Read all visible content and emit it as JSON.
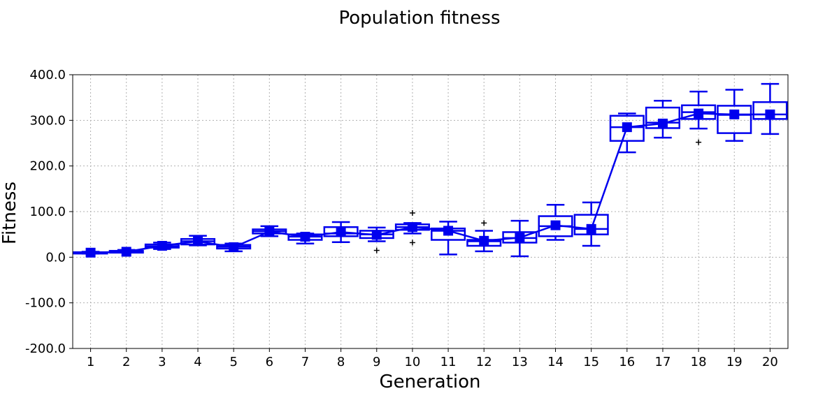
{
  "chart_data": {
    "type": "box",
    "title": "Population fitness",
    "xlabel": "Generation",
    "ylabel": "Fitness",
    "ylim": [
      -200,
      400
    ],
    "y_ticks": [
      -200,
      -100,
      0,
      100,
      200,
      300,
      400
    ],
    "y_tick_labels": [
      "-200.0",
      "-100.0",
      "0.0",
      "100.0",
      "200.0",
      "300.0",
      "400.0"
    ],
    "grid": true,
    "colors": {
      "series": "#0000ee",
      "outlier": "#000000",
      "grid": "#b0b0b0"
    },
    "categories": [
      "1",
      "2",
      "3",
      "4",
      "5",
      "6",
      "7",
      "8",
      "9",
      "10",
      "11",
      "12",
      "13",
      "14",
      "15",
      "16",
      "17",
      "18",
      "19",
      "20"
    ],
    "series": [
      {
        "name": "mean",
        "values": [
          10,
          12,
          25,
          35,
          22,
          56,
          45,
          55,
          49,
          66,
          58,
          36,
          43,
          70,
          62,
          285,
          293,
          315,
          313,
          313
        ]
      }
    ],
    "boxes": [
      {
        "whisker_low": 8,
        "q1": 8,
        "median": 10,
        "q3": 11,
        "whisker_high": 12,
        "outliers": []
      },
      {
        "whisker_low": 10,
        "q1": 10,
        "median": 12,
        "q3": 14,
        "whisker_high": 16,
        "outliers": []
      },
      {
        "whisker_low": 18,
        "q1": 21,
        "median": 24,
        "q3": 28,
        "whisker_high": 32,
        "outliers": []
      },
      {
        "whisker_low": 26,
        "q1": 28,
        "median": 35,
        "q3": 40,
        "whisker_high": 47,
        "outliers": []
      },
      {
        "whisker_low": 13,
        "q1": 19,
        "median": 23,
        "q3": 27,
        "whisker_high": 30,
        "outliers": []
      },
      {
        "whisker_low": 46,
        "q1": 52,
        "median": 57,
        "q3": 61,
        "whisker_high": 68,
        "outliers": []
      },
      {
        "whisker_low": 30,
        "q1": 38,
        "median": 45,
        "q3": 50,
        "whisker_high": 52,
        "outliers": []
      },
      {
        "whisker_low": 33,
        "q1": 46,
        "median": 52,
        "q3": 66,
        "whisker_high": 77,
        "outliers": []
      },
      {
        "whisker_low": 35,
        "q1": 42,
        "median": 50,
        "q3": 58,
        "whisker_high": 65,
        "outliers": [
          15
        ]
      },
      {
        "whisker_low": 52,
        "q1": 60,
        "median": 66,
        "q3": 72,
        "whisker_high": 75,
        "outliers": [
          97,
          32
        ]
      },
      {
        "whisker_low": 6,
        "q1": 38,
        "median": 58,
        "q3": 63,
        "whisker_high": 78,
        "outliers": []
      },
      {
        "whisker_low": 13,
        "q1": 25,
        "median": 35,
        "q3": 38,
        "whisker_high": 58,
        "outliers": [
          75
        ]
      },
      {
        "whisker_low": 2,
        "q1": 32,
        "median": 42,
        "q3": 55,
        "whisker_high": 80,
        "outliers": []
      },
      {
        "whisker_low": 38,
        "q1": 46,
        "median": 68,
        "q3": 90,
        "whisker_high": 115,
        "outliers": []
      },
      {
        "whisker_low": 25,
        "q1": 50,
        "median": 62,
        "q3": 93,
        "whisker_high": 120,
        "outliers": []
      },
      {
        "whisker_low": 230,
        "q1": 255,
        "median": 285,
        "q3": 310,
        "whisker_high": 315,
        "outliers": []
      },
      {
        "whisker_low": 262,
        "q1": 283,
        "median": 295,
        "q3": 328,
        "whisker_high": 343,
        "outliers": []
      },
      {
        "whisker_low": 282,
        "q1": 303,
        "median": 318,
        "q3": 333,
        "whisker_high": 363,
        "outliers": [
          252
        ]
      },
      {
        "whisker_low": 255,
        "q1": 272,
        "median": 312,
        "q3": 332,
        "whisker_high": 367,
        "outliers": []
      },
      {
        "whisker_low": 270,
        "q1": 303,
        "median": 313,
        "q3": 340,
        "whisker_high": 380,
        "outliers": []
      }
    ]
  }
}
